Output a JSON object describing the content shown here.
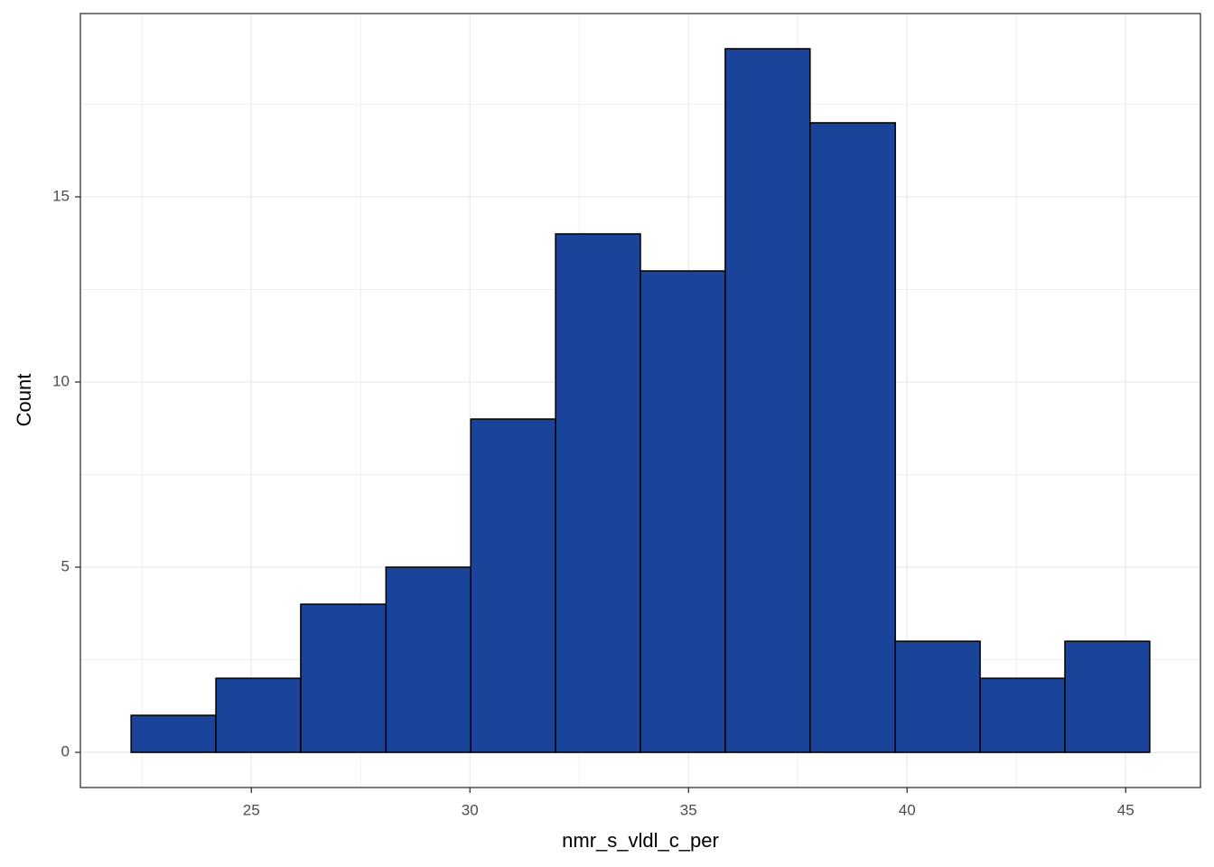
{
  "chart_data": {
    "type": "histogram",
    "x_label": "nmr_s_vldl_c_per",
    "y_label": "Count",
    "bins": [
      22.25,
      24.19,
      26.13,
      28.08,
      30.02,
      31.96,
      33.9,
      35.84,
      37.78,
      39.73,
      41.67,
      43.61,
      45.55
    ],
    "values": [
      1,
      2,
      4,
      5,
      9,
      14,
      13,
      19,
      17,
      3,
      2,
      3
    ],
    "color": "#1a439a",
    "edge_color": "#000000",
    "xlim": [
      21.09,
      46.71
    ],
    "xticks": [
      25,
      30,
      35,
      40,
      45
    ],
    "ylim": [
      -0.95,
      19.95
    ],
    "yticks": [
      0,
      5,
      10,
      15
    ],
    "grid": true
  }
}
